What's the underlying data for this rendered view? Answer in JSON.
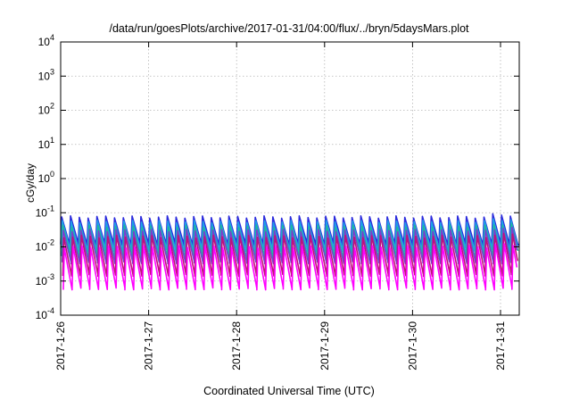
{
  "chart_data": {
    "type": "line",
    "title": "/data/run/goesPlots/archive/2017-01-31/04:00/flux/../bryn/5daysMars.plot",
    "xlabel": "Coordinated Universal Time (UTC)",
    "ylabel": "cGy/day",
    "yscale": "log",
    "ylim": [
      0.0001,
      10000
    ],
    "xlim_days": [
      "2017-01-26",
      "2017-01-31 05:00"
    ],
    "grid": true,
    "y_ticks": [
      {
        "value": 0.0001,
        "base": "10",
        "exp": "-4"
      },
      {
        "value": 0.001,
        "base": "10",
        "exp": "-3"
      },
      {
        "value": 0.01,
        "base": "10",
        "exp": "-2"
      },
      {
        "value": 0.1,
        "base": "10",
        "exp": "-1"
      },
      {
        "value": 1,
        "base": "10",
        "exp": "0"
      },
      {
        "value": 10,
        "base": "10",
        "exp": "1"
      },
      {
        "value": 100,
        "base": "10",
        "exp": "2"
      },
      {
        "value": 1000,
        "base": "10",
        "exp": "3"
      },
      {
        "value": 10000,
        "base": "10",
        "exp": "4"
      }
    ],
    "x_ticks": [
      {
        "day": 0,
        "label": "2017-1-26"
      },
      {
        "day": 1,
        "label": "2017-1-27"
      },
      {
        "day": 2,
        "label": "2017-1-28"
      },
      {
        "day": 3,
        "label": "2017-1-29"
      },
      {
        "day": 4,
        "label": "2017-1-30"
      },
      {
        "day": 5,
        "label": "2017-1-31"
      }
    ],
    "pattern": {
      "cycles_per_day": 10,
      "note_shape": "sawtooth: sharp rise then decay each cycle"
    },
    "series": [
      {
        "color": "#2b2bdc",
        "peak": 0.075,
        "trough": 0.012
      },
      {
        "color": "#1f9ee8",
        "peak": 0.055,
        "trough": 0.008
      },
      {
        "color": "#20b89a",
        "peak": 0.04,
        "trough": 0.005
      },
      {
        "color": "#7a3fd0",
        "peak": 0.03,
        "trough": 0.0035
      },
      {
        "color": "#c0127a",
        "peak": 0.02,
        "trough": 0.0015
      },
      {
        "color": "#ff00ff",
        "peak": 0.01,
        "trough": 0.0006
      }
    ]
  }
}
